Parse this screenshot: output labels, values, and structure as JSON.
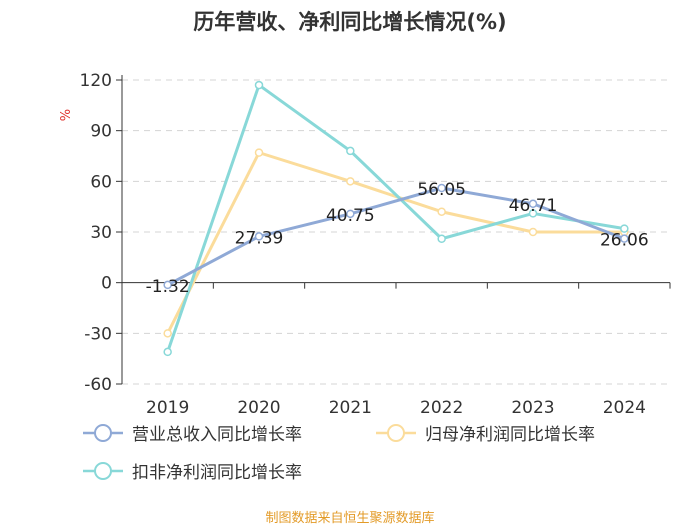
{
  "chart_data": {
    "type": "line",
    "title": "历年营收、净利同比增长情况(%)",
    "ylabel": "%",
    "ylim": [
      -60,
      120
    ],
    "yticks": [
      120,
      90,
      60,
      30,
      0,
      -30,
      -60
    ],
    "ytick_labels": [
      "120",
      "90",
      "60",
      "30",
      "0",
      "-30",
      "-60"
    ],
    "categories": [
      "2019",
      "2020",
      "2021",
      "2022",
      "2023",
      "2024"
    ],
    "series": [
      {
        "name": "营业总收入同比增长率",
        "color": "#8fa9d6",
        "values": [
          -1.32,
          27.39,
          40.75,
          56.05,
          46.71,
          26.06
        ],
        "labels": [
          "-1.32",
          "27.39",
          "40.75",
          "56.05",
          "46.71",
          "26.06"
        ]
      },
      {
        "name": "归母净利润同比增长率",
        "color": "#fbdc9b",
        "values": [
          -30,
          77,
          60,
          42,
          30,
          30
        ]
      },
      {
        "name": "扣非净利润同比增长率",
        "color": "#88d8d8",
        "values": [
          -41,
          117,
          78,
          26,
          41,
          32
        ]
      }
    ],
    "grid": true,
    "legend_position": "bottom"
  },
  "source": "制图数据来自恒生聚源数据库"
}
